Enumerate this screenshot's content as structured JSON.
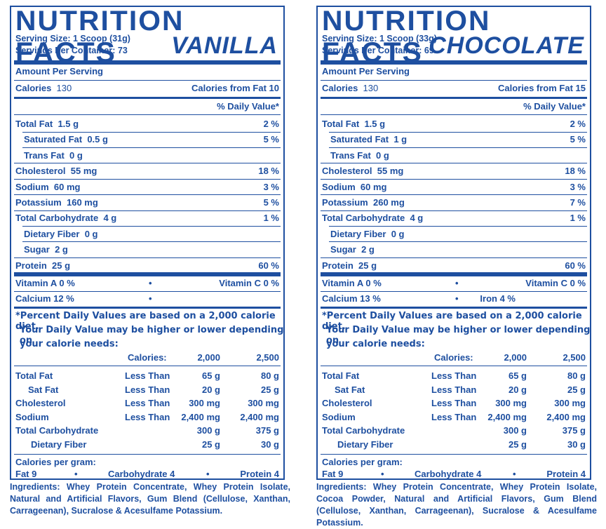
{
  "title": "NUTRITION FACTS",
  "panels": [
    {
      "flavor": "VANILLA",
      "serving_size": "Serving Size: 1 Scoop (31g)",
      "servings_per_container": "Servings Per Container: 73",
      "amount_per_serving": "Amount Per Serving",
      "calories_label": "Calories",
      "calories_value": "130",
      "calories_from_fat": "Calories from Fat  10",
      "daily_value_header": "% Daily Value*",
      "nutrients": [
        {
          "label": "Total Fat",
          "amount": "1.5 g",
          "dv": "2 %"
        },
        {
          "label": "Saturated Fat",
          "amount": "0.5 g",
          "dv": "5 %"
        },
        {
          "label": "Trans Fat",
          "amount": "0 g",
          "dv": ""
        },
        {
          "label": "Cholesterol",
          "amount": "55 mg",
          "dv": "18 %"
        },
        {
          "label": "Sodium",
          "amount": "60 mg",
          "dv": "3 %"
        },
        {
          "label": "Potassium",
          "amount": "160 mg",
          "dv": "5 %"
        },
        {
          "label": "Total Carbohydrate",
          "amount": "4 g",
          "dv": "1 %"
        },
        {
          "label": "Dietary Fiber",
          "amount": "0 g",
          "dv": ""
        },
        {
          "label": "Sugar",
          "amount": "2 g",
          "dv": ""
        },
        {
          "label": "Protein",
          "amount": "25 g",
          "dv": "60 %"
        }
      ],
      "vit_row1_left": "Vitamin A   0 %",
      "vit_row1_right": "Vitamin C   0 %",
      "vit_row2_left": "Calcium   12 %",
      "vit_row2_right": "",
      "ingredients_label": "Ingredients:",
      "ingredients": "Whey Protein Concentrate, Whey Protein Isolate, Natural and Artificial Flavors, Gum Blend (Cellulose, Xanthan, Carrageenan), Sucralose & Acesulfame Potassium."
    },
    {
      "flavor": "CHOCOLATE",
      "serving_size": "Serving Size: 1 Scoop (33g)",
      "servings_per_container": "Servings Per Container: 69",
      "amount_per_serving": "Amount Per Serving",
      "calories_label": "Calories",
      "calories_value": "130",
      "calories_from_fat": "Calories from Fat  15",
      "daily_value_header": "% Daily Value*",
      "nutrients": [
        {
          "label": "Total Fat",
          "amount": "1.5 g",
          "dv": "2 %"
        },
        {
          "label": "Saturated Fat",
          "amount": "1 g",
          "dv": "5 %"
        },
        {
          "label": "Trans Fat",
          "amount": "0 g",
          "dv": ""
        },
        {
          "label": "Cholesterol",
          "amount": "55 mg",
          "dv": "18 %"
        },
        {
          "label": "Sodium",
          "amount": "60 mg",
          "dv": "3 %"
        },
        {
          "label": "Potassium",
          "amount": "260 mg",
          "dv": "7 %"
        },
        {
          "label": "Total Carbohydrate",
          "amount": "4 g",
          "dv": "1 %"
        },
        {
          "label": "Dietary Fiber",
          "amount": "0 g",
          "dv": ""
        },
        {
          "label": "Sugar",
          "amount": "2 g",
          "dv": ""
        },
        {
          "label": "Protein",
          "amount": "25 g",
          "dv": "60 %"
        }
      ],
      "vit_row1_left": "Vitamin A   0 %",
      "vit_row1_right": "Vitamin C   0 %",
      "vit_row2_left": "Calcium   13 %",
      "vit_row2_right": "Iron   4 %",
      "ingredients_label": "Ingredients:",
      "ingredients": "Whey Protein Concentrate, Whey Protein Isolate, Cocoa Powder, Natural and Artificial Flavors, Gum Blend (Cellulose, Xanthan, Carrageenan), Sucralose & Acesulfame Potassium."
    }
  ],
  "bullet": "•",
  "footnote": {
    "line1": "*Percent Daily Values are based on a 2,000 calorie diet.",
    "line2": "Your Daily Value may be higher or lower depending on",
    "line3": "your calorie needs:"
  },
  "dv_table": {
    "header": {
      "calories": "Calories:",
      "c1": "2,000",
      "c2": "2,500"
    },
    "rows": [
      {
        "label": "Total Fat",
        "qual": "Less Than",
        "v1": "65 g",
        "v2": "80 g"
      },
      {
        "label": "Sat Fat",
        "qual": "Less Than",
        "v1": "20 g",
        "v2": "25 g"
      },
      {
        "label": "Cholesterol",
        "qual": "Less Than",
        "v1": "300 mg",
        "v2": "300 mg"
      },
      {
        "label": "Sodium",
        "qual": "Less Than",
        "v1": "2,400 mg",
        "v2": "2,400 mg"
      },
      {
        "label": "Total Carbohydrate",
        "qual": "",
        "v1": "300 g",
        "v2": "375 g"
      },
      {
        "label": "Dietary Fiber",
        "qual": "",
        "v1": "25 g",
        "v2": "30 g"
      }
    ]
  },
  "cal_per_gram": {
    "heading": "Calories per gram:",
    "fat": "Fat  9",
    "carb": "Carbohydrate  4",
    "protein": "Protein  4"
  },
  "colors": {
    "ink": "#1e4fa0",
    "background": "#ffffff"
  }
}
